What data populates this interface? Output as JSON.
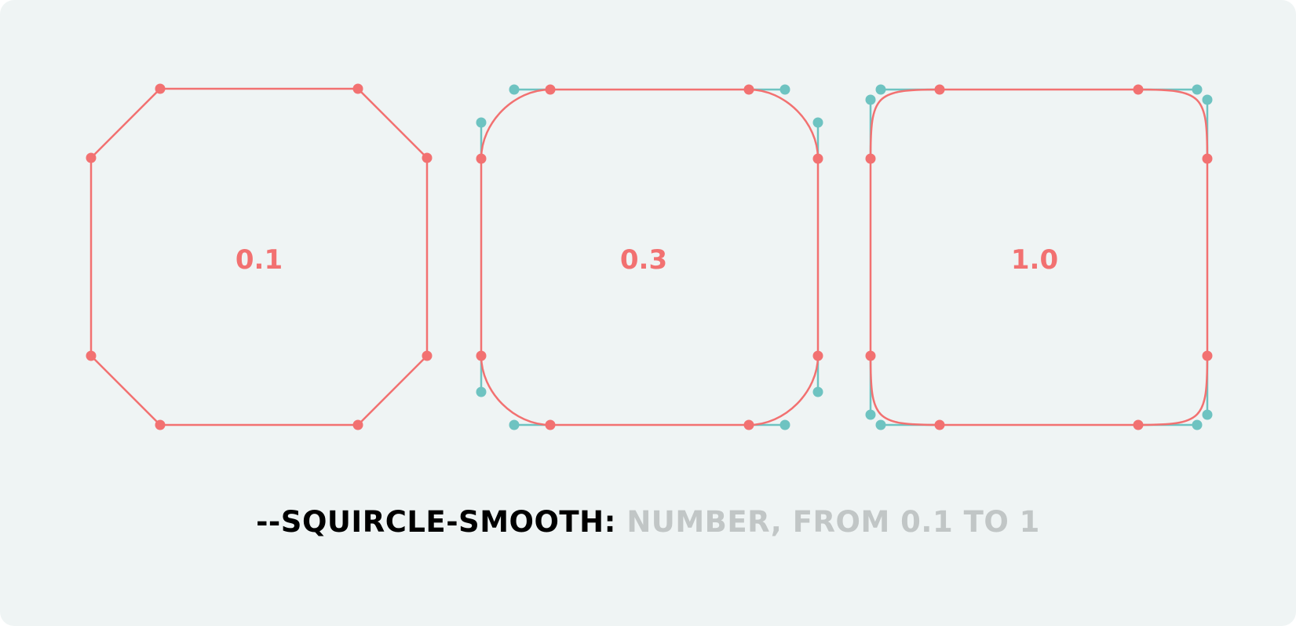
{
  "colors": {
    "background": "#eff4f4",
    "curve": "#f27171",
    "handle": "#6ec3c1",
    "caption_property": "#000000",
    "caption_value": "#c1c6c6"
  },
  "shapes": [
    {
      "label": "0.1",
      "smoothing": 0.1
    },
    {
      "label": "0.3",
      "smoothing": 0.3
    },
    {
      "label": "1.0",
      "smoothing": 1.0
    }
  ],
  "caption": {
    "property": "--SQUIRCLE-SMOOTH:",
    "value": "NUMBER, FROM 0.1 TO 1"
  }
}
